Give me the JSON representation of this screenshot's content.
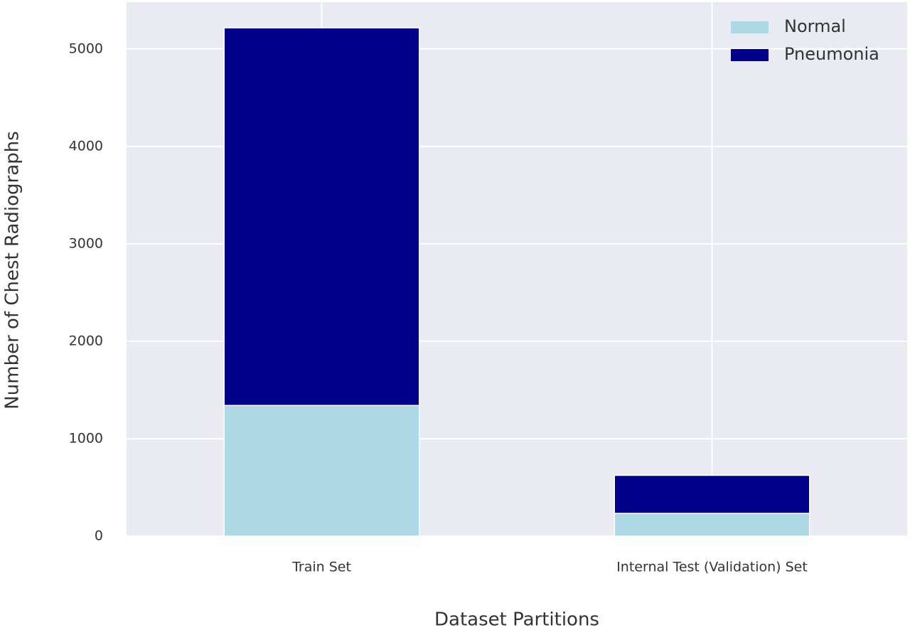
{
  "chart_data": {
    "type": "bar",
    "stacked": true,
    "xlabel": "Dataset Partitions",
    "ylabel": "Number of Chest Radiographs",
    "categories": [
      "Train Set",
      "Internal Test (Validation) Set"
    ],
    "series": [
      {
        "name": "Normal",
        "color": "#add8e6",
        "values": [
          1341,
          234
        ]
      },
      {
        "name": "Pneumonia",
        "color": "#00008b",
        "values": [
          3875,
          390
        ]
      }
    ],
    "ylim": [
      0,
      5480
    ],
    "yticks": [
      0,
      1000,
      2000,
      3000,
      4000,
      5000
    ],
    "grid": true,
    "legend": "upper right"
  }
}
